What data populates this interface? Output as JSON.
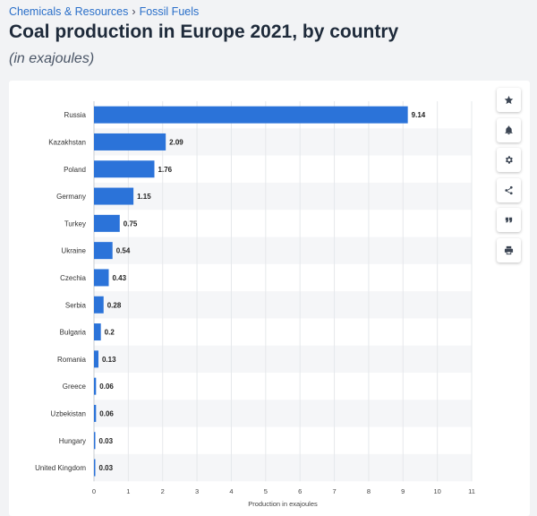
{
  "breadcrumb": {
    "items": [
      "Chemicals & Resources",
      "Fossil Fuels"
    ],
    "separator": "›"
  },
  "header": {
    "title": "Coal production in Europe 2021, by country",
    "subtitle": "(in exajoules)"
  },
  "toolbar": {
    "icons": [
      "star-icon",
      "bell-icon",
      "gear-icon",
      "share-icon",
      "quote-icon",
      "print-icon"
    ]
  },
  "chart_data": {
    "type": "bar",
    "orientation": "horizontal",
    "categories": [
      "Russia",
      "Kazakhstan",
      "Poland",
      "Germany",
      "Turkey",
      "Ukraine",
      "Czechia",
      "Serbia",
      "Bulgaria",
      "Romania",
      "Greece",
      "Uzbekistan",
      "Hungary",
      "United Kingdom"
    ],
    "values": [
      9.14,
      2.09,
      1.76,
      1.15,
      0.75,
      0.54,
      0.43,
      0.28,
      0.2,
      0.13,
      0.06,
      0.06,
      0.03,
      0.03
    ],
    "value_labels": [
      "9.14",
      "2.09",
      "1.76",
      "1.15",
      "0.75",
      "0.54",
      "0.43",
      "0.28",
      "0.2",
      "0.13",
      "0.06",
      "0.06",
      "0.03",
      "0.03"
    ],
    "xlabel": "Production in exajoules",
    "xlim": [
      0,
      11
    ],
    "xticks": [
      0,
      1,
      2,
      3,
      4,
      5,
      6,
      7,
      8,
      9,
      10,
      11
    ],
    "bar_color": "#2b73d9",
    "stripe_color": "#f5f6f8",
    "grid": true
  }
}
